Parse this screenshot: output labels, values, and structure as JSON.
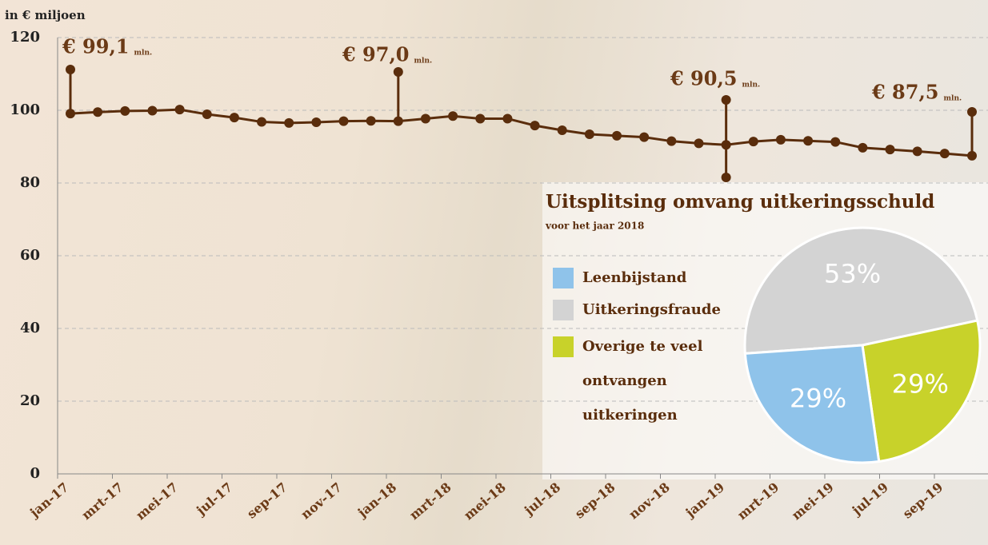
{
  "chart_data": [
    {
      "type": "line",
      "y_label": "in € miljoen",
      "categories": [
        "jan-17",
        null,
        "mrt-17",
        null,
        "mei-17",
        null,
        "jul-17",
        null,
        "sep-17",
        null,
        "nov-17",
        null,
        "jan-18",
        null,
        "mrt-18",
        null,
        "mei-18",
        null,
        "jul-18",
        null,
        "sep-18",
        null,
        "nov-18",
        null,
        "jan-19",
        null,
        "mrt-19",
        null,
        "mei-19",
        null,
        "jul-19",
        null,
        "sep-19",
        null
      ],
      "values": [
        99.1,
        99.5,
        99.8,
        99.9,
        100.2,
        98.9,
        98.0,
        96.8,
        96.5,
        96.7,
        97.0,
        97.1,
        97.0,
        97.7,
        98.4,
        97.7,
        97.7,
        95.8,
        94.5,
        93.4,
        93.0,
        92.6,
        91.5,
        90.9,
        90.5,
        91.4,
        91.9,
        91.6,
        91.3,
        89.7,
        89.2,
        88.7,
        88.1,
        87.5
      ],
      "value_labels": [
        "€ 99,1",
        null,
        null,
        null,
        null,
        null,
        null,
        null,
        null,
        null,
        null,
        null,
        "€ 97,0",
        null,
        null,
        null,
        null,
        null,
        null,
        null,
        null,
        null,
        null,
        null,
        "€ 90,5",
        null,
        null,
        null,
        null,
        null,
        null,
        null,
        null,
        "€ 87,5"
      ],
      "value_label_unit": "mln.",
      "color": "#5a2d0c",
      "ylim": [
        0,
        120
      ],
      "yticks": [
        0,
        20,
        40,
        60,
        80,
        100,
        120
      ],
      "grid": true
    },
    {
      "type": "pie",
      "title": "Uitsplitsing omvang uitkeringsschuld",
      "subtitle": "voor het jaar 2018",
      "categories": [
        "Leenbijstand",
        "Uitkeringsfraude",
        "Overige te veel ontvangen uitkeringen"
      ],
      "values": [
        29,
        53,
        29
      ],
      "value_labels": [
        "29%",
        "53%",
        "29%"
      ],
      "colors": [
        "#8fc3ea",
        "#d3d3d3",
        "#c8d22a"
      ]
    }
  ]
}
